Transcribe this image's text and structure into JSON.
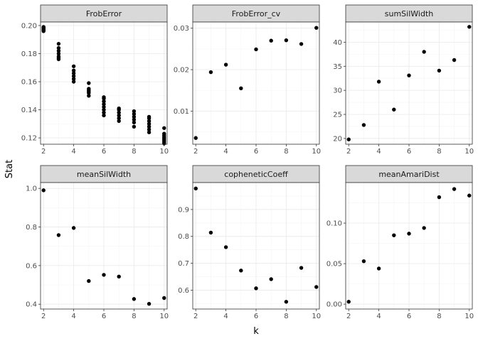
{
  "chart_data": {
    "type": "scatter",
    "xlabel": "k",
    "ylabel": "Stat",
    "xticks": [
      2,
      4,
      6,
      8,
      10
    ],
    "xlim": [
      1.8,
      10.2
    ],
    "panels": [
      {
        "title": "FrobError",
        "ylim": [
          0.1155,
          0.2025
        ],
        "yticks": [
          0.12,
          0.14,
          0.16,
          0.18,
          0.2
        ],
        "ytick_labels": [
          "0.12",
          "0.14",
          "0.16",
          "0.18",
          "0.20"
        ],
        "points": [
          [
            2,
            0.196
          ],
          [
            2,
            0.197
          ],
          [
            2,
            0.1975
          ],
          [
            2,
            0.198
          ],
          [
            2,
            0.1985
          ],
          [
            2,
            0.199
          ],
          [
            2,
            0.1965
          ],
          [
            3,
            0.176
          ],
          [
            3,
            0.178
          ],
          [
            3,
            0.18
          ],
          [
            3,
            0.182
          ],
          [
            3,
            0.184
          ],
          [
            3,
            0.187
          ],
          [
            3,
            0.177
          ],
          [
            4,
            0.16
          ],
          [
            4,
            0.162
          ],
          [
            4,
            0.164
          ],
          [
            4,
            0.166
          ],
          [
            4,
            0.168
          ],
          [
            4,
            0.171
          ],
          [
            5,
            0.15
          ],
          [
            5,
            0.152
          ],
          [
            5,
            0.153
          ],
          [
            5,
            0.154
          ],
          [
            5,
            0.155
          ],
          [
            5,
            0.159
          ],
          [
            6,
            0.136
          ],
          [
            6,
            0.138
          ],
          [
            6,
            0.14
          ],
          [
            6,
            0.142
          ],
          [
            6,
            0.144
          ],
          [
            6,
            0.146
          ],
          [
            6,
            0.148
          ],
          [
            6,
            0.149
          ],
          [
            7,
            0.132
          ],
          [
            7,
            0.134
          ],
          [
            7,
            0.136
          ],
          [
            7,
            0.138
          ],
          [
            7,
            0.14
          ],
          [
            7,
            0.141
          ],
          [
            8,
            0.128
          ],
          [
            8,
            0.131
          ],
          [
            8,
            0.133
          ],
          [
            8,
            0.135
          ],
          [
            8,
            0.137
          ],
          [
            8,
            0.139
          ],
          [
            9,
            0.124
          ],
          [
            9,
            0.126
          ],
          [
            9,
            0.128
          ],
          [
            9,
            0.13
          ],
          [
            9,
            0.132
          ],
          [
            9,
            0.134
          ],
          [
            9,
            0.135
          ],
          [
            10,
            0.116
          ],
          [
            10,
            0.117
          ],
          [
            10,
            0.118
          ],
          [
            10,
            0.119
          ],
          [
            10,
            0.12
          ],
          [
            10,
            0.121
          ],
          [
            10,
            0.122
          ],
          [
            10,
            0.123
          ],
          [
            10,
            0.127
          ]
        ]
      },
      {
        "title": "FrobError_cv",
        "ylim": [
          0.002,
          0.0315
        ],
        "yticks": [
          0.01,
          0.02,
          0.03
        ],
        "ytick_labels": [
          "0.01",
          "0.02",
          "0.03"
        ],
        "points": [
          [
            2,
            0.0035
          ],
          [
            3,
            0.0194
          ],
          [
            4,
            0.0212
          ],
          [
            5,
            0.0155
          ],
          [
            6,
            0.0249
          ],
          [
            7,
            0.027
          ],
          [
            8,
            0.0271
          ],
          [
            9,
            0.0262
          ],
          [
            10,
            0.0301
          ]
        ]
      },
      {
        "title": "sumSilWidth",
        "ylim": [
          18.8,
          44.2
        ],
        "yticks": [
          20,
          25,
          30,
          35,
          40
        ],
        "ytick_labels": [
          "20",
          "25",
          "30",
          "35",
          "40"
        ],
        "points": [
          [
            2,
            19.8
          ],
          [
            3,
            22.8
          ],
          [
            4,
            31.8
          ],
          [
            5,
            26.0
          ],
          [
            6,
            33.1
          ],
          [
            7,
            38.0
          ],
          [
            8,
            34.1
          ],
          [
            9,
            36.3
          ],
          [
            10,
            43.2
          ]
        ]
      },
      {
        "title": "meanSilWidth",
        "ylim": [
          0.375,
          1.03
        ],
        "yticks": [
          0.4,
          0.6,
          0.8,
          1.0
        ],
        "ytick_labels": [
          "0.4",
          "0.6",
          "0.8",
          "1.0"
        ],
        "points": [
          [
            2,
            0.99
          ],
          [
            3,
            0.758
          ],
          [
            4,
            0.795
          ],
          [
            5,
            0.52
          ],
          [
            6,
            0.552
          ],
          [
            7,
            0.543
          ],
          [
            8,
            0.427
          ],
          [
            9,
            0.402
          ],
          [
            10,
            0.432
          ]
        ]
      },
      {
        "title": "copheneticCoeff",
        "ylim": [
          0.53,
          1.0
        ],
        "yticks": [
          0.6,
          0.7,
          0.8,
          0.9
        ],
        "ytick_labels": [
          "0.6",
          "0.7",
          "0.8",
          "0.9"
        ],
        "points": [
          [
            2,
            0.978
          ],
          [
            3,
            0.814
          ],
          [
            4,
            0.76
          ],
          [
            5,
            0.673
          ],
          [
            6,
            0.607
          ],
          [
            7,
            0.641
          ],
          [
            8,
            0.557
          ],
          [
            9,
            0.683
          ],
          [
            10,
            0.612
          ]
        ]
      },
      {
        "title": "meanAmariDist",
        "ylim": [
          -0.006,
          0.15
        ],
        "yticks": [
          0.0,
          0.05,
          0.1
        ],
        "ytick_labels": [
          "0.00",
          "0.05",
          "0.10"
        ],
        "points": [
          [
            2,
            0.003
          ],
          [
            3,
            0.053
          ],
          [
            4,
            0.044
          ],
          [
            5,
            0.085
          ],
          [
            6,
            0.087
          ],
          [
            7,
            0.094
          ],
          [
            8,
            0.132
          ],
          [
            9,
            0.142
          ],
          [
            10,
            0.134
          ]
        ]
      }
    ]
  }
}
